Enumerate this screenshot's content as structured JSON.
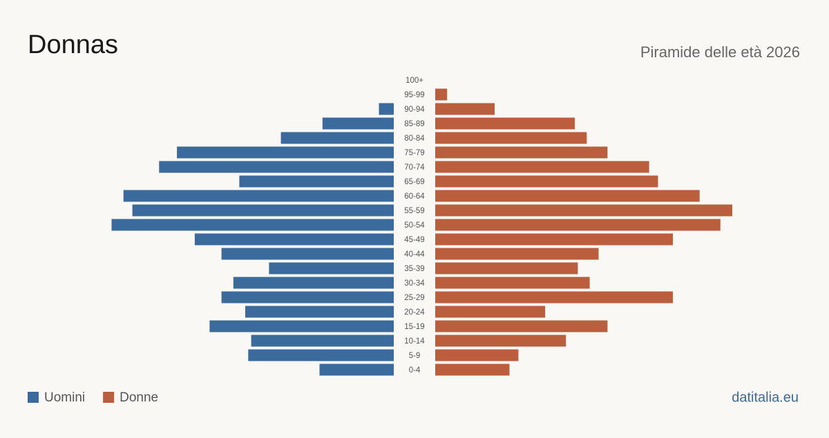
{
  "chart_data": {
    "type": "pyramid",
    "title": "Donnas",
    "subtitle": "Piramide delle età 2026",
    "source": "datitalia.eu",
    "categories": [
      "100+",
      "95-99",
      "90-94",
      "85-89",
      "80-84",
      "75-79",
      "70-74",
      "65-69",
      "60-64",
      "55-59",
      "50-54",
      "45-49",
      "40-44",
      "35-39",
      "30-34",
      "25-29",
      "20-24",
      "15-19",
      "10-14",
      "5-9",
      "0-4"
    ],
    "series": [
      {
        "name": "Uomini",
        "color": "#3b6a9c",
        "values": [
          0,
          0,
          5,
          24,
          38,
          73,
          79,
          52,
          91,
          88,
          95,
          67,
          58,
          42,
          54,
          58,
          50,
          62,
          48,
          49,
          25
        ]
      },
      {
        "name": "Donne",
        "color": "#bb5e3e",
        "values": [
          0,
          4,
          20,
          47,
          51,
          58,
          72,
          75,
          89,
          100,
          96,
          80,
          55,
          48,
          52,
          80,
          37,
          58,
          44,
          28,
          25
        ]
      }
    ],
    "legend": "bottom-left"
  }
}
